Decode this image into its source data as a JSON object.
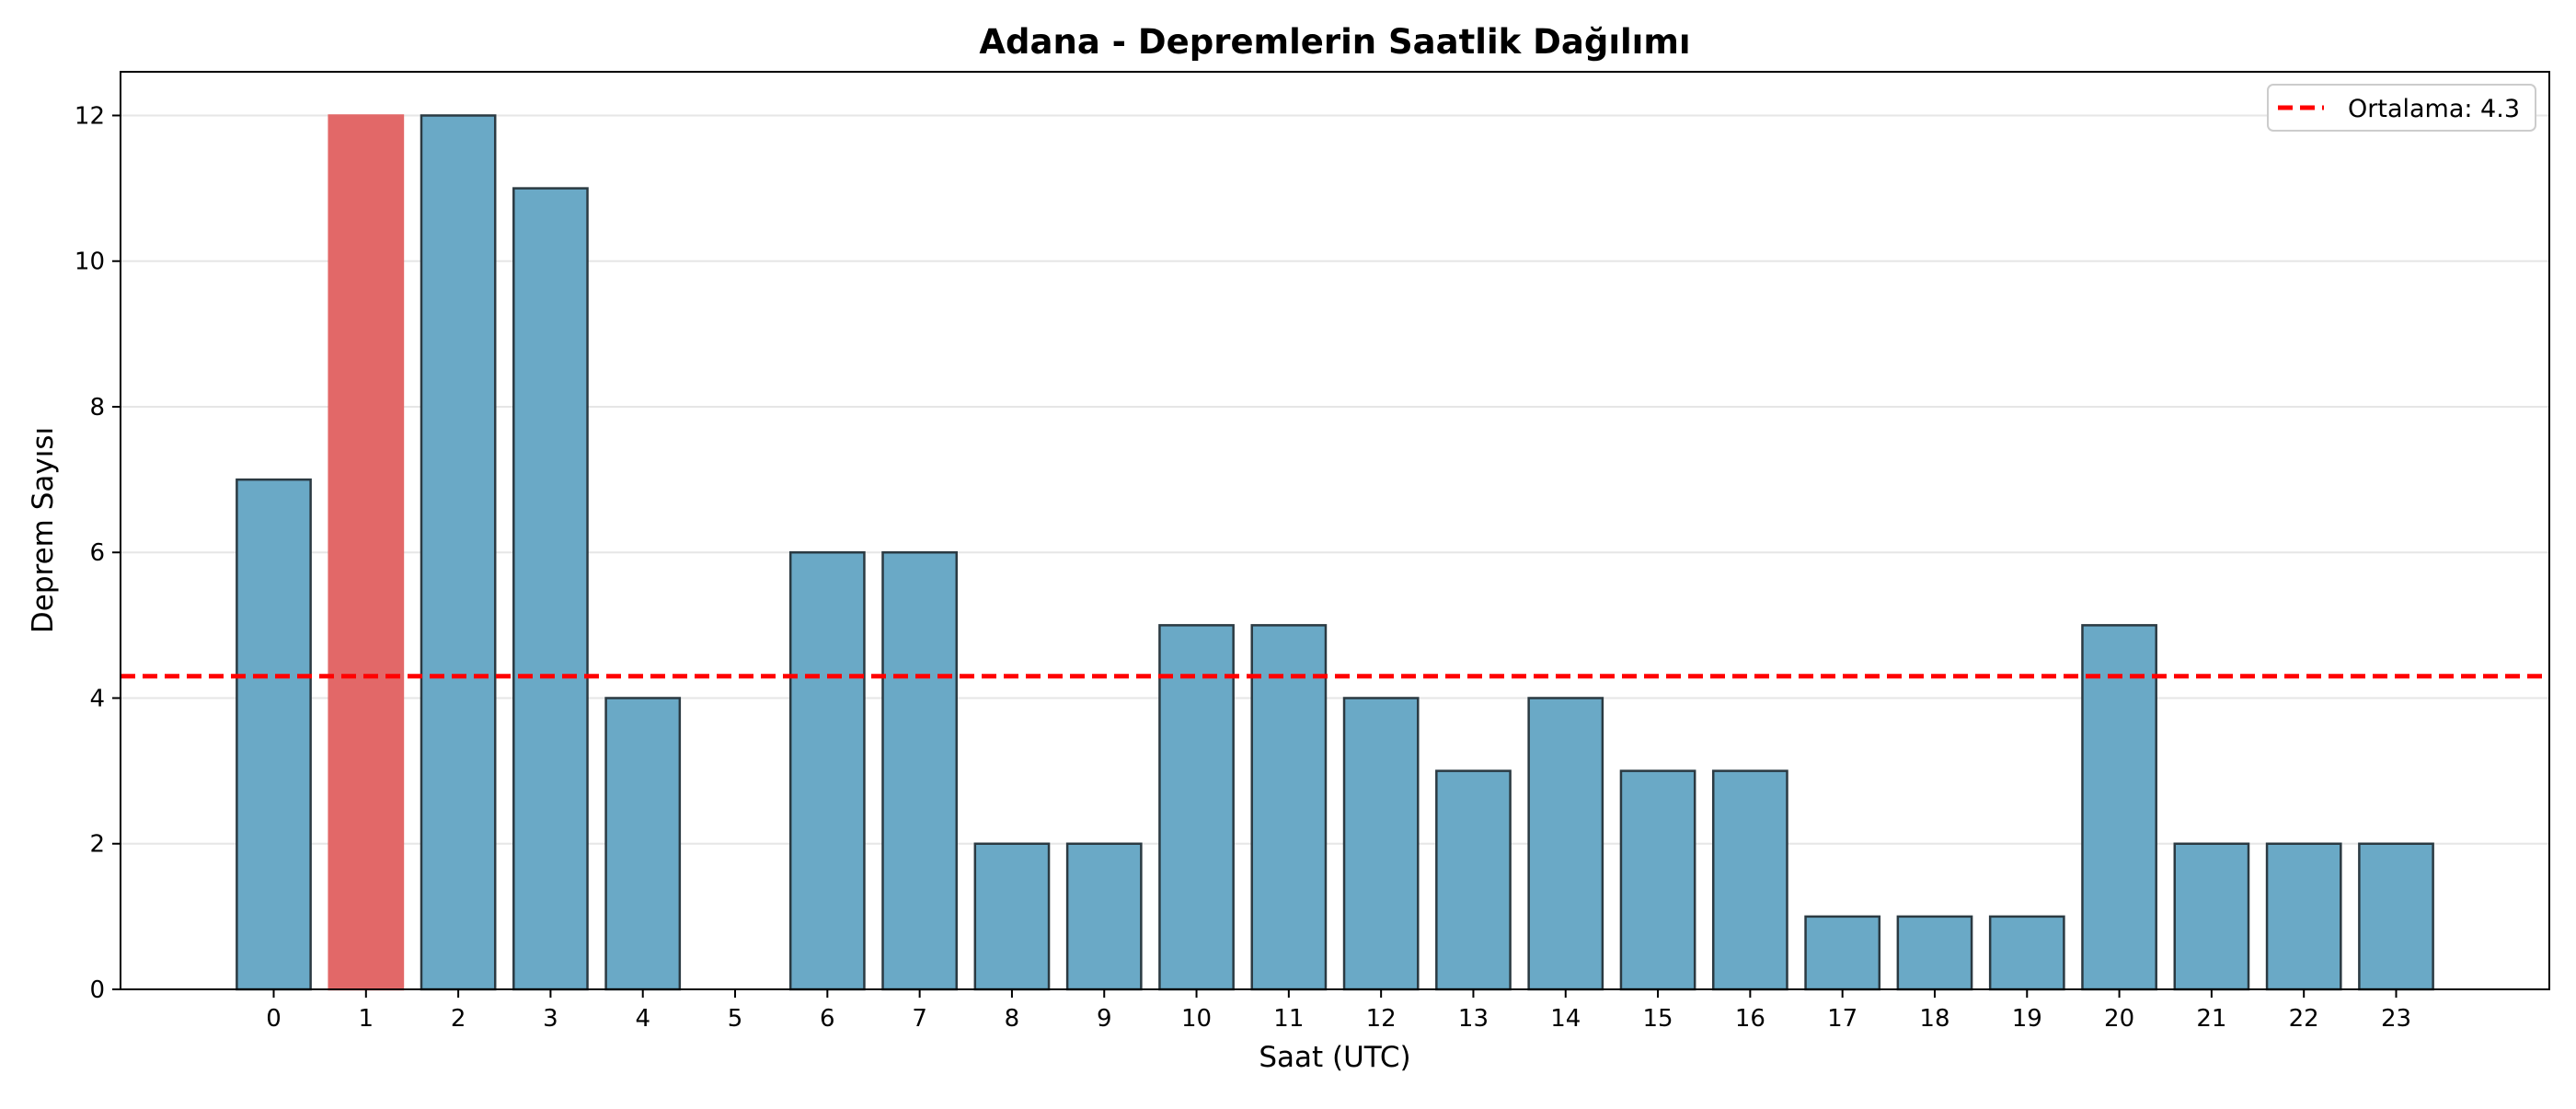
{
  "chart_data": {
    "type": "bar",
    "title": "Adana - Depremlerin Saatlik Dağılımı",
    "xlabel": "Saat (UTC)",
    "ylabel": "Deprem Sayısı",
    "categories": [
      "0",
      "1",
      "2",
      "3",
      "4",
      "5",
      "6",
      "7",
      "8",
      "9",
      "10",
      "11",
      "12",
      "13",
      "14",
      "15",
      "16",
      "17",
      "18",
      "19",
      "20",
      "21",
      "22",
      "23"
    ],
    "values": [
      7,
      12,
      12,
      11,
      4,
      0,
      6,
      6,
      2,
      2,
      5,
      5,
      4,
      3,
      4,
      3,
      3,
      1,
      1,
      1,
      5,
      2,
      2,
      2
    ],
    "highlight_index": 1,
    "ylim": [
      0,
      12.6
    ],
    "yticks": [
      0,
      2,
      4,
      6,
      8,
      10,
      12
    ],
    "grid": "horizontal",
    "colors": {
      "bar": "#6aa9c6",
      "highlight": "#e26868",
      "edge": "#2b3a42",
      "mean_line": "#ff0000",
      "grid": "#e6e6e6"
    },
    "mean_line": {
      "value": 4.3,
      "label": "Ortalama: 4.3"
    },
    "legend": {
      "position": "top-right"
    }
  }
}
